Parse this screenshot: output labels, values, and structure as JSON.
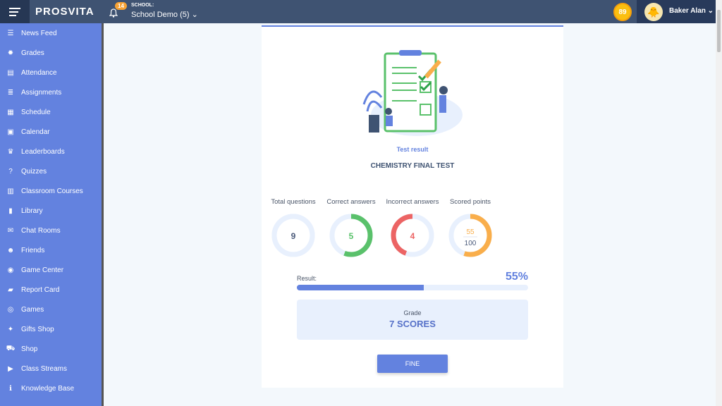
{
  "header": {
    "logo": "PROSVITA",
    "notifications": "14",
    "school_label": "SCHOOL:",
    "school": "School Demo (5) ⌄",
    "coins": "89",
    "user": "Baker Alan ⌄"
  },
  "sidebar": {
    "items": [
      {
        "label": "News Feed",
        "icon": "☰"
      },
      {
        "label": "Grades",
        "icon": "✹"
      },
      {
        "label": "Attendance",
        "icon": "▤"
      },
      {
        "label": "Assignments",
        "icon": "≣"
      },
      {
        "label": "Schedule",
        "icon": "▦"
      },
      {
        "label": "Calendar",
        "icon": "▣"
      },
      {
        "label": "Leaderboards",
        "icon": "♛"
      },
      {
        "label": "Quizzes",
        "icon": "?"
      },
      {
        "label": "Classroom Courses",
        "icon": "▥"
      },
      {
        "label": "Library",
        "icon": "▮"
      },
      {
        "label": "Chat Rooms",
        "icon": "✉"
      },
      {
        "label": "Friends",
        "icon": "☻"
      },
      {
        "label": "Game Center",
        "icon": "◉"
      },
      {
        "label": "Report Card",
        "icon": "▰"
      },
      {
        "label": "Games",
        "icon": "◎"
      },
      {
        "label": "Gifts Shop",
        "icon": "✦"
      },
      {
        "label": "Shop",
        "icon": "⛟"
      },
      {
        "label": "Class Streams",
        "icon": "▶"
      },
      {
        "label": "Knowledge Base",
        "icon": "ℹ"
      }
    ]
  },
  "result": {
    "subtitle": "Test result",
    "title": "CHEMISTRY FINAL TEST",
    "stats": [
      {
        "label": "Total questions",
        "value": "9",
        "fraction": 1,
        "color": "#e8f0fd",
        "text_color": "#4a5a7a"
      },
      {
        "label": "Correct answers",
        "value": "5",
        "fraction": 0.556,
        "color": "#5ac16b",
        "text_color": "#5ac16b"
      },
      {
        "label": "Incorrect answers",
        "value": "4",
        "fraction": 0.444,
        "color": "#ec6464",
        "text_color": "#ec6464"
      },
      {
        "label": "Scored points",
        "value": "55",
        "total": "100",
        "fraction": 0.55,
        "color": "#f9ae4b",
        "text_color": "#f9ae4b"
      }
    ],
    "result_label": "Result:",
    "result_percent": "55%",
    "progress": 55,
    "grade_label": "Grade",
    "grade_value": "7 SCORES",
    "button": "FINE"
  }
}
